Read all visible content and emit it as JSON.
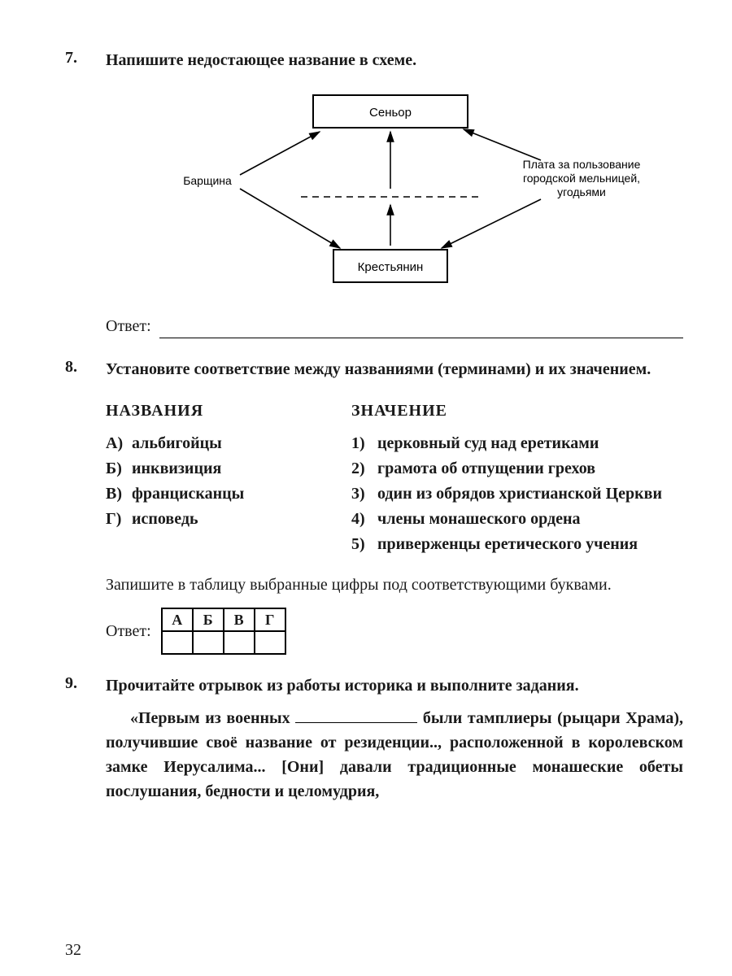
{
  "page_number": "32",
  "q7": {
    "number": "7.",
    "prompt": "Напишите недостающее название в схеме.",
    "answer_label": "Ответ:",
    "diagram": {
      "top_box": "Сеньор",
      "bottom_box": "Крестьянин",
      "left_label": "Барщина",
      "right_label_l1": "Плата за пользование",
      "right_label_l2": "городской мельницей,",
      "right_label_l3": "угодьями",
      "stroke": "#000000",
      "box_fill": "#ffffff",
      "font_family": "Arial, sans-serif",
      "box_font_size": 15,
      "label_font_size": 14
    }
  },
  "q8": {
    "number": "8.",
    "prompt": "Установите соответствие между названиями (терминами) и их значением.",
    "left_header": "НАЗВАНИЯ",
    "right_header": "ЗНАЧЕНИЕ",
    "left_items": [
      {
        "marker": "А)",
        "text": "альбигойцы"
      },
      {
        "marker": "Б)",
        "text": "инквизиция"
      },
      {
        "marker": "В)",
        "text": "францисканцы"
      },
      {
        "marker": "Г)",
        "text": "исповедь"
      }
    ],
    "right_items": [
      {
        "marker": "1)",
        "text": "церковный суд над еретиками"
      },
      {
        "marker": "2)",
        "text": "грамота об отпущении грехов"
      },
      {
        "marker": "3)",
        "text": "один из обрядов христианской Церкви"
      },
      {
        "marker": "4)",
        "text": "члены монашеского ордена"
      },
      {
        "marker": "5)",
        "text": "приверженцы еретического учения"
      }
    ],
    "post_note": "Запишите в таблицу выбранные цифры под соответствующими буквами.",
    "answer_label": "Ответ:",
    "table_headers": [
      "А",
      "Б",
      "В",
      "Г"
    ]
  },
  "q9": {
    "number": "9.",
    "prompt": "Прочитайте отрывок из работы историка и выполните задания.",
    "passage_pre": "«Первым из военных ",
    "passage_post": " были тамплиеры (рыцари Храма), получившие своё название от резиденции.., расположенной в королевском замке Иерусалима... [Они] давали традиционные монашеские обеты послушания, бедности и целомудрия,"
  }
}
